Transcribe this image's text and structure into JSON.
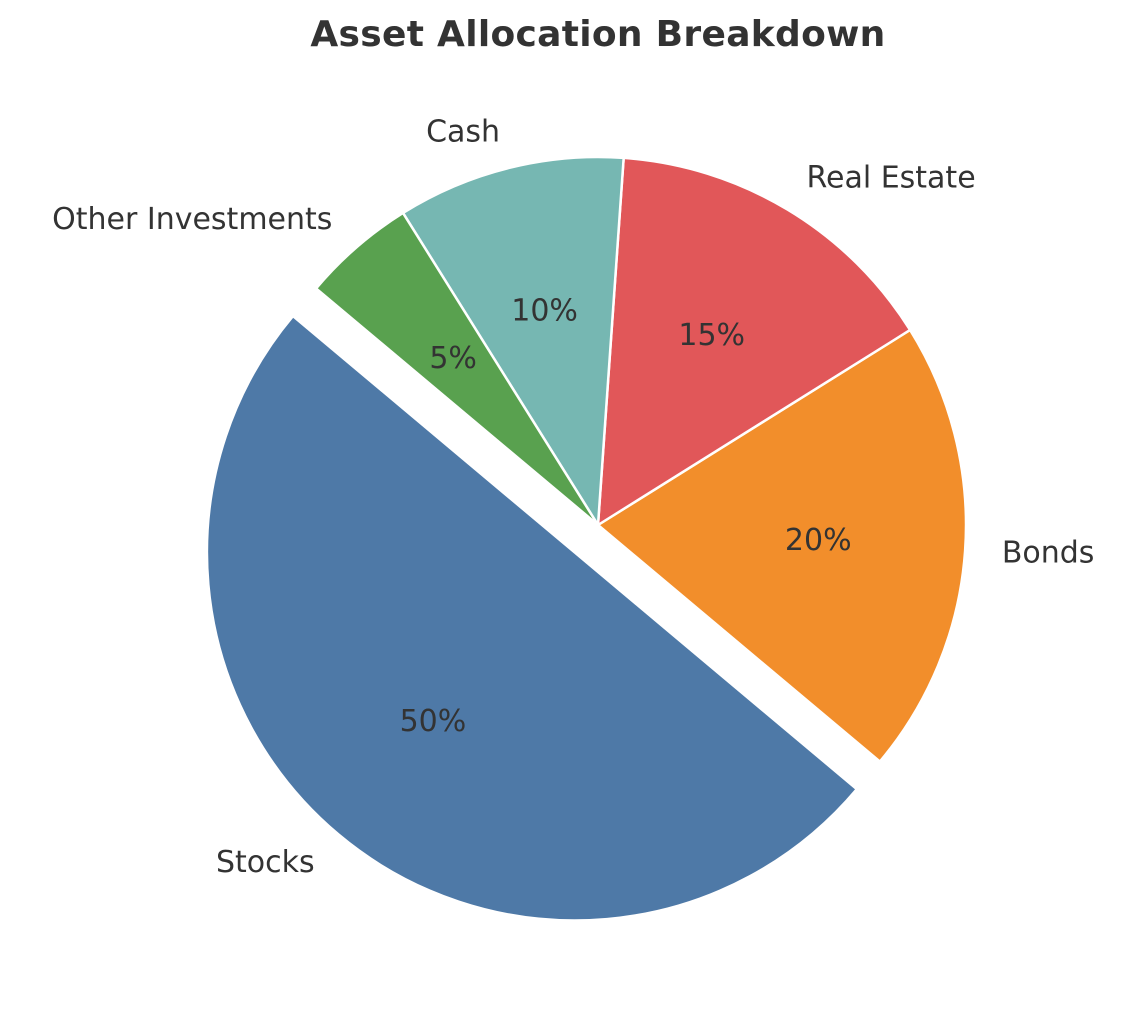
{
  "chart_data": {
    "type": "pie",
    "title": "Asset Allocation Breakdown",
    "categories": [
      "Stocks",
      "Bonds",
      "Real Estate",
      "Cash",
      "Other Investments"
    ],
    "values": [
      50,
      20,
      15,
      10,
      5
    ],
    "value_labels": [
      "50%",
      "20%",
      "15%",
      "10%",
      "5%"
    ],
    "colors": [
      "#4e79a7",
      "#f28e2b",
      "#e15759",
      "#76b7b2",
      "#59a14f"
    ],
    "exploded": [
      "Stocks"
    ],
    "start_angle_deg": 140,
    "direction": "counterclockwise",
    "legend": "none"
  }
}
